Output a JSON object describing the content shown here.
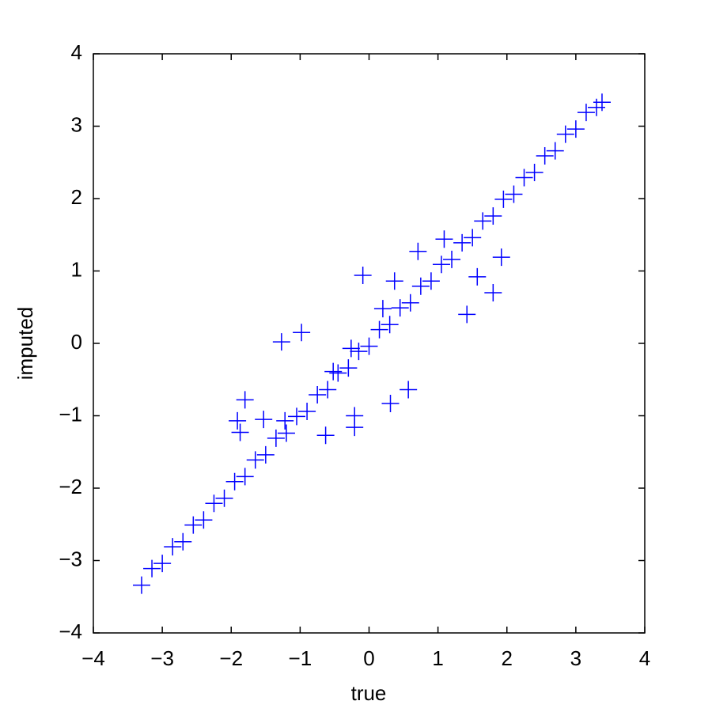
{
  "chart_data": {
    "type": "scatter",
    "xlabel": "true",
    "ylabel": "imputed",
    "xlim": [
      -4,
      4
    ],
    "ylim": [
      -4,
      4
    ],
    "xticks": [
      {
        "value": -4,
        "label": "−4"
      },
      {
        "value": -3,
        "label": "−3"
      },
      {
        "value": -2,
        "label": "−2"
      },
      {
        "value": -1,
        "label": "−1"
      },
      0,
      1,
      2,
      3,
      4
    ],
    "yticks": [
      {
        "value": -4,
        "label": "−4"
      },
      {
        "value": -3,
        "label": "−3"
      },
      {
        "value": -2,
        "label": "−2"
      },
      {
        "value": -1,
        "label": "−1"
      },
      0,
      1,
      2,
      3,
      4
    ],
    "marker": "+",
    "series": [
      {
        "color": "#0000ff",
        "x": [
          -3.3,
          -3.15,
          -3.0,
          -2.85,
          -2.7,
          -2.55,
          -2.4,
          -2.25,
          -2.1,
          -1.95,
          -1.8,
          -1.65,
          -1.5,
          -1.35,
          -1.2,
          -1.05,
          -0.9,
          -0.75,
          -0.6,
          -0.45,
          -0.3,
          -0.15,
          0,
          0.15,
          0.3,
          0.45,
          0.6,
          0.75,
          0.9,
          1.05,
          1.2,
          1.35,
          1.5,
          1.65,
          1.8,
          1.95,
          2.1,
          2.25,
          2.4,
          2.55,
          2.7,
          2.85,
          3.0,
          3.15,
          3.3,
          3.38,
          -0.09,
          -1.27,
          -0.98,
          -1.8,
          -1.91,
          -1.87,
          -1.53,
          -1.22,
          -0.63,
          -0.21,
          -0.21,
          0.31,
          0.57,
          1.42,
          1.8,
          1.92,
          1.57,
          1.09,
          0.71,
          0.37,
          0.2,
          -0.26,
          -0.52
        ],
        "y": [
          -3.34,
          -3.11,
          -3.04,
          -2.81,
          -2.74,
          -2.51,
          -2.44,
          -2.21,
          -2.14,
          -1.91,
          -1.84,
          -1.61,
          -1.54,
          -1.31,
          -1.24,
          -1.01,
          -0.94,
          -0.71,
          -0.64,
          -0.41,
          -0.34,
          -0.11,
          -0.04,
          0.19,
          0.26,
          0.49,
          0.56,
          0.79,
          0.86,
          1.09,
          1.16,
          1.39,
          1.46,
          1.69,
          1.76,
          1.99,
          2.06,
          2.29,
          2.36,
          2.59,
          2.66,
          2.89,
          2.96,
          3.19,
          3.26,
          3.33,
          0.94,
          0.02,
          0.15,
          -0.78,
          -1.07,
          -1.23,
          -1.05,
          -1.07,
          -1.27,
          -1.0,
          -1.16,
          -0.83,
          -0.64,
          0.4,
          0.7,
          1.19,
          0.92,
          1.44,
          1.27,
          0.86,
          0.48,
          -0.07,
          -0.39
        ]
      }
    ]
  }
}
